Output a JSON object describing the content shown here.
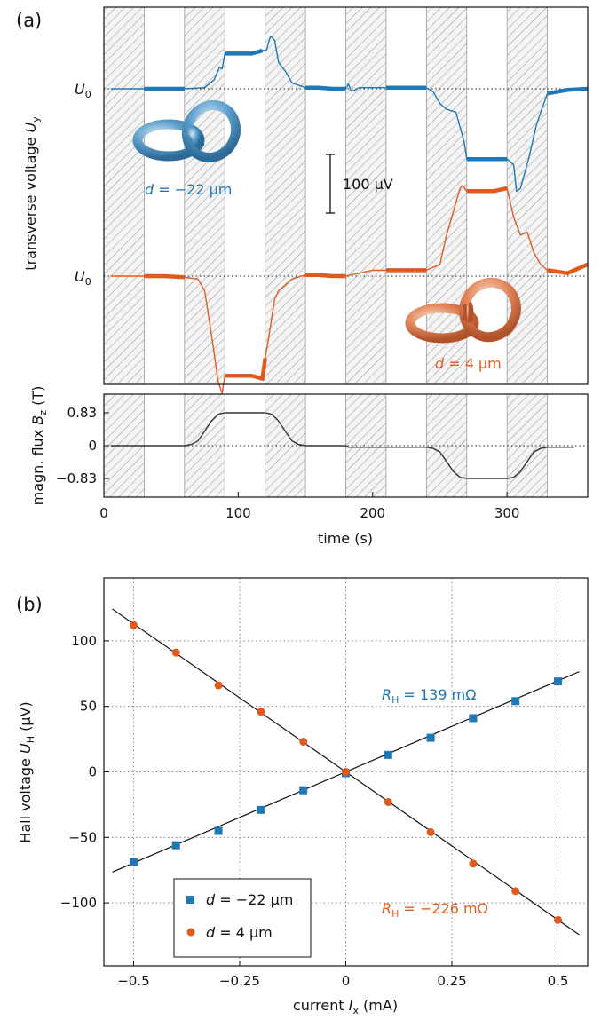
{
  "chart_data": [
    {
      "type": "line",
      "panel_label": "(a)",
      "ylabel": {
        "main": "transverse voltage ",
        "var": "U",
        "sub": "y"
      },
      "y_reference_label": {
        "var": "U",
        "sub": "0"
      },
      "scale_bar_label": "100 µV",
      "shaded_time_intervals_s": [
        [
          0,
          30
        ],
        [
          60,
          90
        ],
        [
          120,
          150
        ],
        [
          180,
          210
        ],
        [
          240,
          270
        ],
        [
          300,
          330
        ]
      ],
      "series": [
        {
          "sample_label": {
            "var": "d",
            "text": " = −22 µm"
          },
          "color": "#1f77b4",
          "unit": "µV relative to U0",
          "x": [
            5,
            15,
            30,
            45,
            60,
            75,
            82,
            86,
            88,
            90,
            100,
            110,
            118,
            121,
            124,
            127,
            130,
            135,
            140,
            150,
            160,
            170,
            180,
            182,
            184,
            187,
            190,
            200,
            210,
            240,
            245,
            250,
            255,
            262,
            268,
            270,
            280,
            290,
            300,
            305,
            307,
            310,
            316,
            322,
            330,
            345,
            360
          ],
          "y": [
            0,
            0,
            0,
            0,
            0,
            2,
            15,
            37,
            34,
            60,
            60,
            60,
            65,
            66,
            90,
            83,
            45,
            30,
            10,
            2,
            2,
            0,
            0,
            8,
            -4,
            -2,
            2,
            2,
            2,
            2,
            -5,
            -25,
            -35,
            -40,
            -90,
            -120,
            -120,
            -120,
            -120,
            -130,
            -175,
            -170,
            -120,
            -60,
            -8,
            -2,
            0
          ]
        },
        {
          "sample_label": {
            "var": "d",
            "text": " = 4 µm"
          },
          "color": "#e05a1e",
          "unit": "µV relative to U0",
          "x": [
            5,
            15,
            30,
            45,
            60,
            70,
            75,
            78,
            82,
            85,
            88,
            90,
            100,
            110,
            118,
            120,
            123,
            127,
            130,
            140,
            150,
            160,
            170,
            180,
            190,
            200,
            210,
            240,
            250,
            255,
            260,
            265,
            267,
            270,
            280,
            290,
            300,
            305,
            310,
            315,
            320,
            325,
            330,
            345,
            360
          ],
          "y": [
            0,
            0,
            0,
            0,
            -2,
            -5,
            -25,
            -70,
            -130,
            -180,
            -200,
            -170,
            -170,
            -170,
            -175,
            -140,
            -100,
            -40,
            -25,
            -5,
            2,
            2,
            0,
            0,
            5,
            10,
            10,
            10,
            20,
            70,
            110,
            150,
            155,
            145,
            145,
            145,
            150,
            100,
            70,
            75,
            40,
            20,
            10,
            5,
            20
          ]
        }
      ]
    },
    {
      "type": "line",
      "ylabel": {
        "main": "magn. flux ",
        "var": "B",
        "sub": "z",
        "unit": " (T)"
      },
      "xlabel": "time (s)",
      "xlim": [
        0,
        360
      ],
      "ylim": [
        -1.3,
        1.3
      ],
      "xticks": [
        "0",
        "100",
        "200",
        "300"
      ],
      "xtick_values": [
        0,
        100,
        200,
        300
      ],
      "yticks": [
        "0.83",
        "0",
        "−0.83"
      ],
      "ytick_values": [
        0.83,
        0,
        -0.83
      ],
      "color": "#333333",
      "x": [
        5,
        60,
        65,
        70,
        75,
        80,
        85,
        90,
        120,
        125,
        130,
        135,
        140,
        145,
        150,
        180,
        182,
        240,
        245,
        250,
        255,
        260,
        265,
        270,
        300,
        305,
        310,
        315,
        320,
        325,
        330,
        350
      ],
      "y": [
        0,
        0,
        0.03,
        0.12,
        0.36,
        0.62,
        0.79,
        0.83,
        0.83,
        0.79,
        0.62,
        0.36,
        0.12,
        0.03,
        0,
        0,
        -0.04,
        -0.04,
        -0.07,
        -0.16,
        -0.4,
        -0.65,
        -0.8,
        -0.83,
        -0.83,
        -0.8,
        -0.65,
        -0.4,
        -0.16,
        -0.07,
        -0.04,
        -0.04
      ]
    },
    {
      "type": "scatter",
      "panel_label": "(b)",
      "xlabel": {
        "main": "current ",
        "var": "I",
        "sub": "x",
        "unit": " (mA)"
      },
      "ylabel": {
        "main": "Hall voltage ",
        "var": "U",
        "sub": "H",
        "unit": " (µV)"
      },
      "xlim": [
        -0.57,
        0.57
      ],
      "ylim": [
        -148,
        148
      ],
      "xticks": [
        "−0.5",
        "−0.25",
        "0",
        "0.25",
        "0.5"
      ],
      "xtick_values": [
        -0.5,
        -0.25,
        0,
        0.25,
        0.5
      ],
      "yticks": [
        "100",
        "50",
        "0",
        "−50",
        "−100"
      ],
      "ytick_values": [
        100,
        50,
        0,
        -50,
        -100
      ],
      "grid": true,
      "legend_placement": "bottom-left",
      "series": [
        {
          "name": {
            "var": "d",
            "text": " = −22 µm"
          },
          "color": "#1f77b4",
          "marker": "square",
          "fit_label": {
            "var": "R",
            "sub": "H",
            "text": " = 139 mΩ"
          },
          "fit_slope_uV_per_mA": 139,
          "x": [
            -0.5,
            -0.4,
            -0.3,
            -0.2,
            -0.1,
            0,
            0.1,
            0.2,
            0.3,
            0.4,
            0.5
          ],
          "y": [
            -69,
            -56,
            -45,
            -29,
            -14,
            -1,
            13,
            26,
            41,
            54,
            69
          ]
        },
        {
          "name": {
            "var": "d",
            "text": " = 4 µm"
          },
          "color": "#e05a1e",
          "marker": "circle",
          "fit_label": {
            "var": "R",
            "sub": "H",
            "text": " = −226 mΩ"
          },
          "fit_slope_uV_per_mA": -226,
          "x": [
            -0.5,
            -0.4,
            -0.3,
            -0.2,
            -0.1,
            0,
            0.1,
            0.2,
            0.3,
            0.4,
            0.5
          ],
          "y": [
            112,
            91,
            66,
            46,
            23,
            0,
            -23,
            -46,
            -70,
            -91,
            -113
          ]
        }
      ]
    }
  ]
}
